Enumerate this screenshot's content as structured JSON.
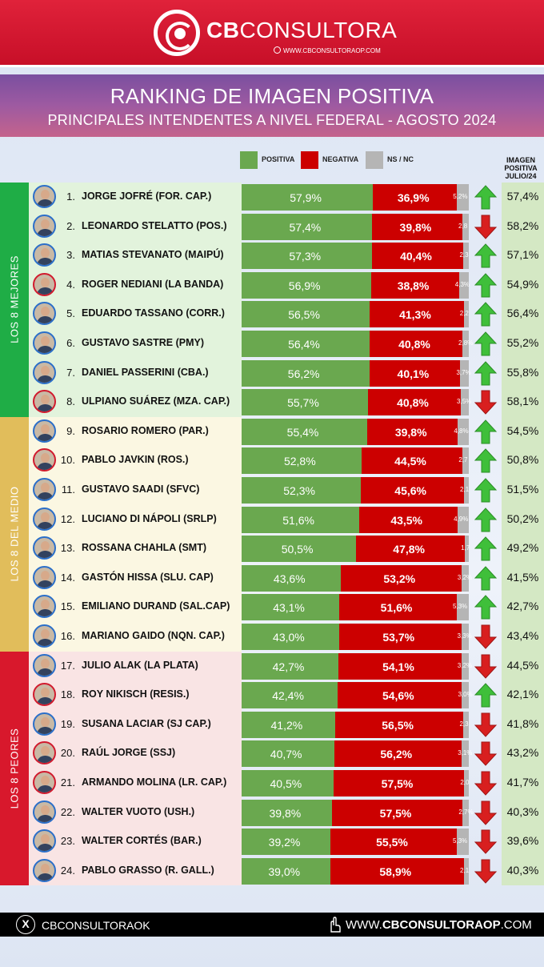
{
  "header": {
    "brand_bold": "CB",
    "brand_rest": "CONSULTORA",
    "url": "WWW.CBCONSULTORAOP.COM"
  },
  "title": {
    "line1": "RANKING DE IMAGEN POSITIVA",
    "line2": "PRINCIPALES INTENDENTES A NIVEL FEDERAL - AGOSTO 2024"
  },
  "legend": [
    {
      "label": "POSITIVA",
      "color": "#6aa84f"
    },
    {
      "label": "NEGATIVA",
      "color": "#cc0000"
    },
    {
      "label": "NS / NC",
      "color": "#b5b5b5"
    }
  ],
  "prev_header": [
    "IMAGEN",
    "POSITIVA",
    "JULIO/24"
  ],
  "groups": [
    {
      "label": "LOS 8 MEJORES",
      "color": "#1fad46",
      "bg": "#e2f3dc",
      "from": 0,
      "to": 7
    },
    {
      "label": "LOS 8 DEL MEDIO",
      "color": "#e1bd5b",
      "bg": "#fbf7e2",
      "from": 8,
      "to": 15
    },
    {
      "label": "LOS 8 PEORES",
      "color": "#d8182c",
      "bg": "#f9e4e4",
      "from": 16,
      "to": 23
    }
  ],
  "chart_data": {
    "type": "bar",
    "title": "RANKING DE IMAGEN POSITIVA",
    "subtitle": "PRINCIPALES INTENDENTES A NIVEL FEDERAL - AGOSTO 2024",
    "stacked": true,
    "orientation": "horizontal",
    "categories": [
      "JORGE JOFRÉ (FOR. CAP.)",
      "LEONARDO STELATTO (POS.)",
      "MATIAS STEVANATO (MAIPÚ)",
      "ROGER NEDIANI (LA BANDA)",
      "EDUARDO TASSANO (CORR.)",
      "GUSTAVO SASTRE (PMY)",
      "DANIEL PASSERINI (CBA.)",
      "ULPIANO SUÁREZ (MZA. CAP.)",
      "ROSARIO ROMERO (PAR.)",
      "PABLO JAVKIN (ROS.)",
      "GUSTAVO SAADI (SFVC)",
      "LUCIANO DI NÁPOLI (SRLP)",
      "ROSSANA CHAHLA (SMT)",
      "GASTÓN HISSA (SLU. CAP)",
      "EMILIANO DURAND (SAL.CAP)",
      "MARIANO GAIDO (NQN. CAP.)",
      "JULIO ALAK (LA PLATA)",
      "ROY NIKISCH (RESIS.)",
      "SUSANA LACIAR (SJ CAP.)",
      "RAÚL JORGE (SSJ)",
      "ARMANDO MOLINA (LR. CAP.)",
      "WALTER VUOTO (USH.)",
      "WALTER CORTÉS (BAR.)",
      "PABLO GRASSO (R. GALL.)"
    ],
    "ranks": [
      "1.",
      "2.",
      "3.",
      "4.",
      "5.",
      "6.",
      "7.",
      "8.",
      "9.",
      "10.",
      "11.",
      "12.",
      "13.",
      "14.",
      "15.",
      "16.",
      "17.",
      "18.",
      "19.",
      "20.",
      "21.",
      "22.",
      "23.",
      "24."
    ],
    "series": [
      {
        "name": "POSITIVA",
        "values": [
          57.9,
          57.4,
          57.3,
          56.9,
          56.5,
          56.4,
          56.2,
          55.7,
          55.4,
          52.8,
          52.3,
          51.6,
          50.5,
          43.6,
          43.1,
          43.0,
          42.7,
          42.4,
          41.2,
          40.7,
          40.5,
          39.8,
          39.2,
          39.0
        ]
      },
      {
        "name": "NEGATIVA",
        "values": [
          36.9,
          39.8,
          40.4,
          38.8,
          41.3,
          40.8,
          40.1,
          40.8,
          39.8,
          44.5,
          45.6,
          43.5,
          47.8,
          53.2,
          51.6,
          53.7,
          54.1,
          54.6,
          56.5,
          56.2,
          57.5,
          57.5,
          55.5,
          58.9
        ]
      },
      {
        "name": "NS / NC",
        "values": [
          5.2,
          2.8,
          2.3,
          4.3,
          2.2,
          2.8,
          3.7,
          3.5,
          4.8,
          2.7,
          2.1,
          4.9,
          1.7,
          3.2,
          5.3,
          3.3,
          3.2,
          3.0,
          2.3,
          3.1,
          2.0,
          2.7,
          5.3,
          2.1
        ]
      }
    ],
    "labels": {
      "POSITIVA": [
        "57,9%",
        "57,4%",
        "57,3%",
        "56,9%",
        "56,5%",
        "56,4%",
        "56,2%",
        "55,7%",
        "55,4%",
        "52,8%",
        "52,3%",
        "51,6%",
        "50,5%",
        "43,6%",
        "43,1%",
        "43,0%",
        "42,7%",
        "42,4%",
        "41,2%",
        "40,7%",
        "40,5%",
        "39,8%",
        "39,2%",
        "39,0%"
      ],
      "NEGATIVA": [
        "36,9%",
        "39,8%",
        "40,4%",
        "38,8%",
        "41,3%",
        "40,8%",
        "40,1%",
        "40,8%",
        "39,8%",
        "44,5%",
        "45,6%",
        "43,5%",
        "47,8%",
        "53,2%",
        "51,6%",
        "53,7%",
        "54,1%",
        "54,6%",
        "56,5%",
        "56,2%",
        "57,5%",
        "57,5%",
        "55,5%",
        "58,9%"
      ],
      "NS / NC": [
        "5,2%",
        "2,8",
        "2,3",
        "4,3%",
        "2,2",
        "2,8%",
        "3,7%",
        "3,5%",
        "4,8%",
        "2,7",
        "2,1",
        "4,9%",
        "1,7",
        "3,2%",
        "5,3%",
        "3,3%",
        "3,2%",
        "3,0%",
        "2,3",
        "3,1%",
        "2,0",
        "2,7%",
        "5,3%",
        "2,1"
      ]
    },
    "trend": [
      "up",
      "down",
      "up",
      "up",
      "up",
      "up",
      "up",
      "down",
      "up",
      "up",
      "up",
      "up",
      "up",
      "up",
      "up",
      "down",
      "down",
      "up",
      "down",
      "down",
      "down",
      "down",
      "down",
      "down"
    ],
    "previous": [
      "57,4%",
      "58,2%",
      "57,1%",
      "54,9%",
      "56,4%",
      "55,2%",
      "55,8%",
      "58,1%",
      "54,5%",
      "50,8%",
      "51,5%",
      "50,2%",
      "49,2%",
      "41,5%",
      "42,7%",
      "43,4%",
      "44,5%",
      "42,1%",
      "41,8%",
      "43,2%",
      "41,7%",
      "40,3%",
      "39,6%",
      "40,3%"
    ],
    "xlim": [
      0,
      100
    ],
    "legend": "top-center",
    "grid": false
  },
  "footer": {
    "social": "CBCONSULTORAOK",
    "url_prefix": "WWW.",
    "url_main": "CBCONSULTORAOP",
    "url_suffix": ".COM"
  }
}
